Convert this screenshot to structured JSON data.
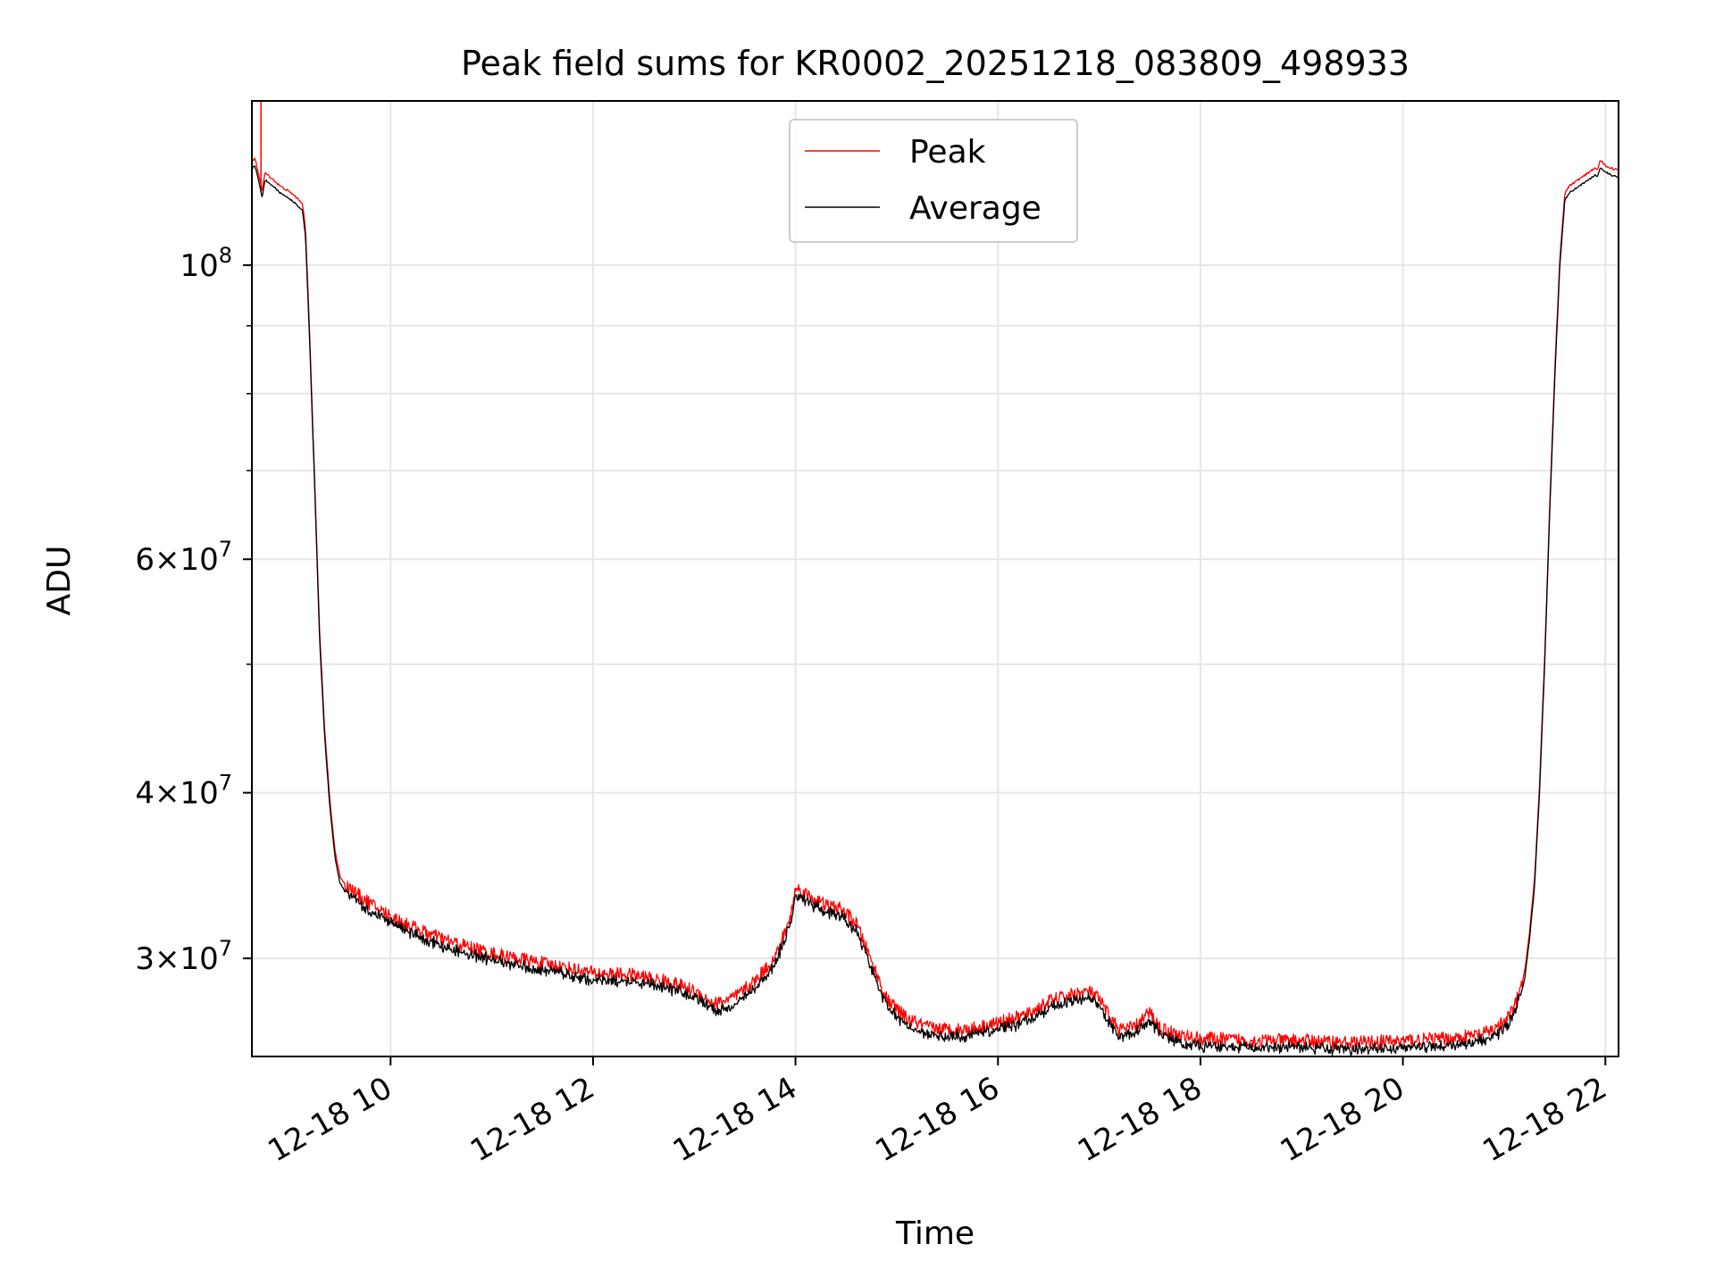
{
  "chart_data": {
    "type": "line",
    "title": "Peak field sums for KR0002_20251218_083809_498933",
    "xlabel": "Time",
    "ylabel": "ADU",
    "yscale": "log",
    "xlim_hours": [
      8.63,
      22.13
    ],
    "ylim": [
      25300000,
      133000000
    ],
    "grid": true,
    "legend_position": "upper-center",
    "x_ticks": [
      {
        "value": 10,
        "label": "12-18 10"
      },
      {
        "value": 12,
        "label": "12-18 12"
      },
      {
        "value": 14,
        "label": "12-18 14"
      },
      {
        "value": 16,
        "label": "12-18 16"
      },
      {
        "value": 18,
        "label": "12-18 18"
      },
      {
        "value": 20,
        "label": "12-18 20"
      },
      {
        "value": 22,
        "label": "12-18 22"
      }
    ],
    "y_major_ticks": [
      {
        "value": 30000000,
        "base": "3×10",
        "exp": "7"
      },
      {
        "value": 40000000,
        "base": "4×10",
        "exp": "7"
      },
      {
        "value": 60000000,
        "base": "6×10",
        "exp": "7"
      },
      {
        "value": 100000000,
        "base": "10",
        "exp": "8"
      }
    ],
    "y_minor_ticks": [
      50000000,
      70000000,
      80000000,
      90000000
    ],
    "series": [
      {
        "name": "Peak",
        "color": "#ff0000",
        "offset_ratio": 1.012,
        "noise_ratio": 0.012,
        "spike": {
          "x": 8.72,
          "y": 133000000
        }
      },
      {
        "name": "Average",
        "color": "#000000",
        "offset_ratio": 1.0,
        "noise_ratio": 0.009
      }
    ],
    "x": [
      8.63,
      8.66,
      8.7,
      8.73,
      8.76,
      8.82,
      8.9,
      8.98,
      9.05,
      9.13,
      9.16,
      9.2,
      9.25,
      9.3,
      9.35,
      9.4,
      9.45,
      9.5,
      9.55,
      9.6,
      9.7,
      9.85,
      10.0,
      10.3,
      10.6,
      11.0,
      11.4,
      11.8,
      12.0,
      12.4,
      12.8,
      13.0,
      13.2,
      13.4,
      13.6,
      13.8,
      13.95,
      14.0,
      14.15,
      14.3,
      14.45,
      14.6,
      14.75,
      14.9,
      15.1,
      15.3,
      15.5,
      15.7,
      16.0,
      16.3,
      16.5,
      16.7,
      16.9,
      17.0,
      17.1,
      17.2,
      17.35,
      17.5,
      17.6,
      17.8,
      18.0,
      18.5,
      19.0,
      19.5,
      20.0,
      20.5,
      20.8,
      21.0,
      21.1,
      21.2,
      21.25,
      21.3,
      21.35,
      21.4,
      21.45,
      21.5,
      21.55,
      21.6,
      21.65,
      21.8,
      21.9,
      21.92,
      21.95,
      22.0,
      22.05,
      22.13
    ],
    "y": [
      118000000,
      119000000,
      115500000,
      112500000,
      116000000,
      115000000,
      113500000,
      112500000,
      111500000,
      110000000,
      105000000,
      88000000,
      68000000,
      52000000,
      44000000,
      39000000,
      35800000,
      34200000,
      33700000,
      33500000,
      33000000,
      32400000,
      31900000,
      31100000,
      30500000,
      29900000,
      29500000,
      29100000,
      28900000,
      28800000,
      28400000,
      28000000,
      27400000,
      27700000,
      28500000,
      29700000,
      31800000,
      33500000,
      33000000,
      32500000,
      32300000,
      31500000,
      29500000,
      27600000,
      26700000,
      26300000,
      26200000,
      26200000,
      26500000,
      26900000,
      27500000,
      27800000,
      28000000,
      27600000,
      26800000,
      26200000,
      26300000,
      27000000,
      26300000,
      25900000,
      25800000,
      25700000,
      25700000,
      25600000,
      25700000,
      25800000,
      26000000,
      26500000,
      27200000,
      28800000,
      31000000,
      34000000,
      40000000,
      50000000,
      65000000,
      82000000,
      100000000,
      112000000,
      113500000,
      115500000,
      117000000,
      116500000,
      118500000,
      117500000,
      117000000,
      116500000
    ]
  }
}
